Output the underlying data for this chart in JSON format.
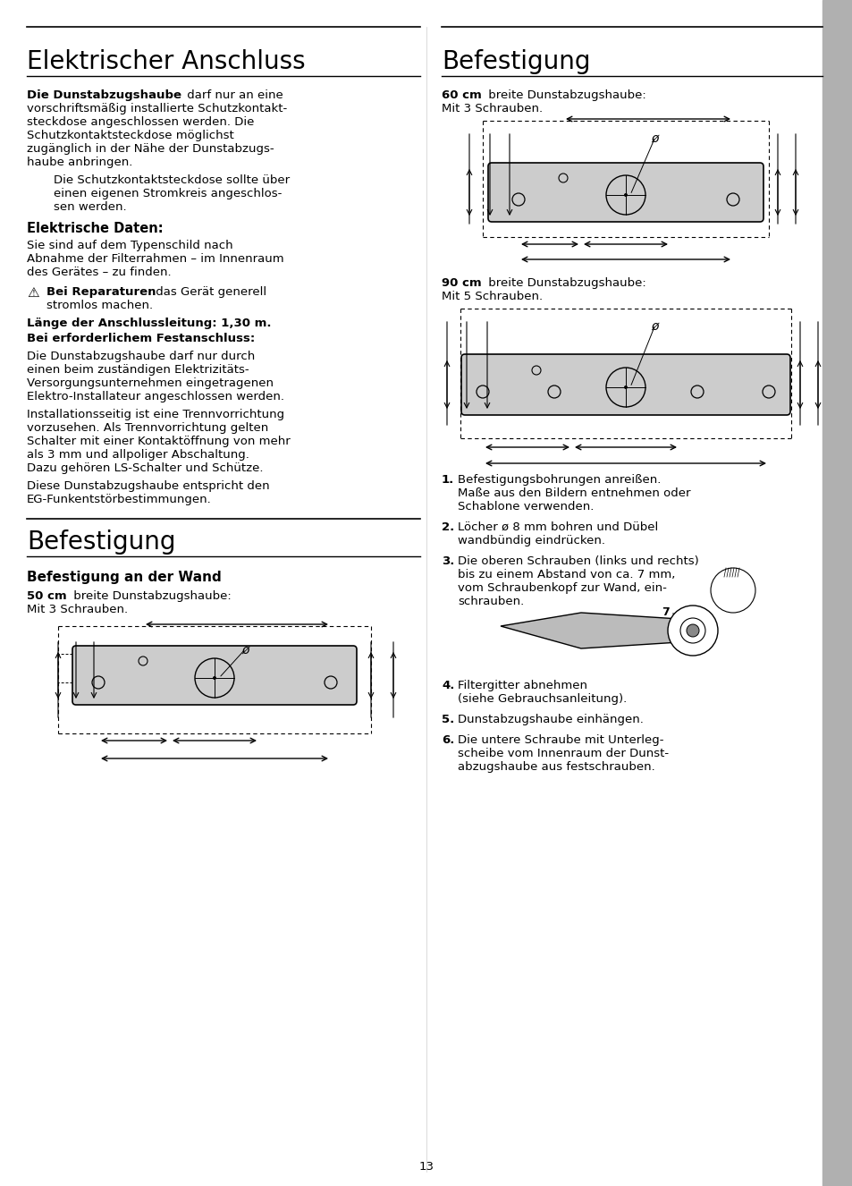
{
  "title_left": "Elektrischer Anschluss",
  "title_right": "Befestigung",
  "background_color": "#ffffff",
  "text_color": "#000000",
  "sidebar_color": "#b0b0b0",
  "page_number": "13"
}
